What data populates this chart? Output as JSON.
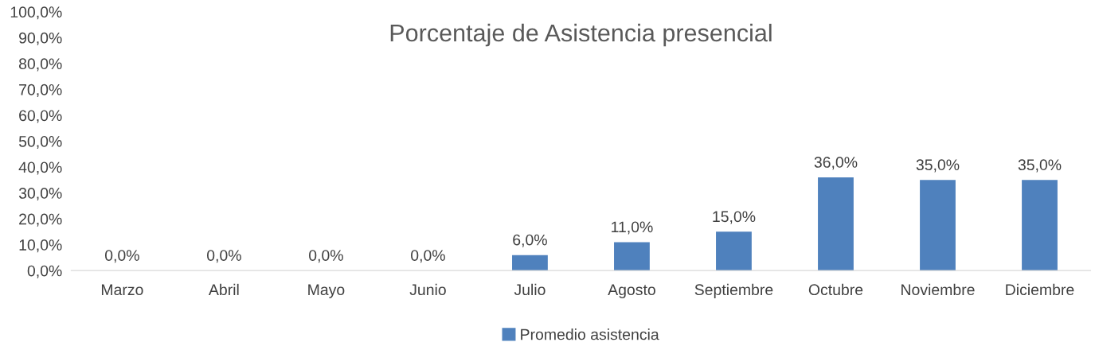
{
  "chart_data": {
    "type": "bar",
    "title": "Porcentaje de Asistencia presencial",
    "categories": [
      "Marzo",
      "Abril",
      "Mayo",
      "Junio",
      "Julio",
      "Agosto",
      "Septiembre",
      "Octubre",
      "Noviembre",
      "Diciembre"
    ],
    "series": [
      {
        "name": "Promedio asistencia",
        "color": "#4f81bd",
        "values": [
          0,
          0,
          0,
          0,
          6,
          11,
          15,
          36,
          35,
          35
        ],
        "value_labels": [
          "0,0%",
          "0,0%",
          "0,0%",
          "0,0%",
          "6,0%",
          "11,0%",
          "15,0%",
          "36,0%",
          "35,0%",
          "35,0%"
        ]
      }
    ],
    "ylim": [
      0,
      100
    ],
    "yticks": [
      {
        "value": 0,
        "label": "0,0%"
      },
      {
        "value": 10,
        "label": "10,0%"
      },
      {
        "value": 20,
        "label": "20,0%"
      },
      {
        "value": 30,
        "label": "30,0%"
      },
      {
        "value": 40,
        "label": "40,0%"
      },
      {
        "value": 50,
        "label": "50,0%"
      },
      {
        "value": 60,
        "label": "60,0%"
      },
      {
        "value": 70,
        "label": "70,0%"
      },
      {
        "value": 80,
        "label": "80,0%"
      },
      {
        "value": 90,
        "label": "90,0%"
      },
      {
        "value": 100,
        "label": "100,0%"
      }
    ],
    "grid": false,
    "legend": "bottom"
  }
}
